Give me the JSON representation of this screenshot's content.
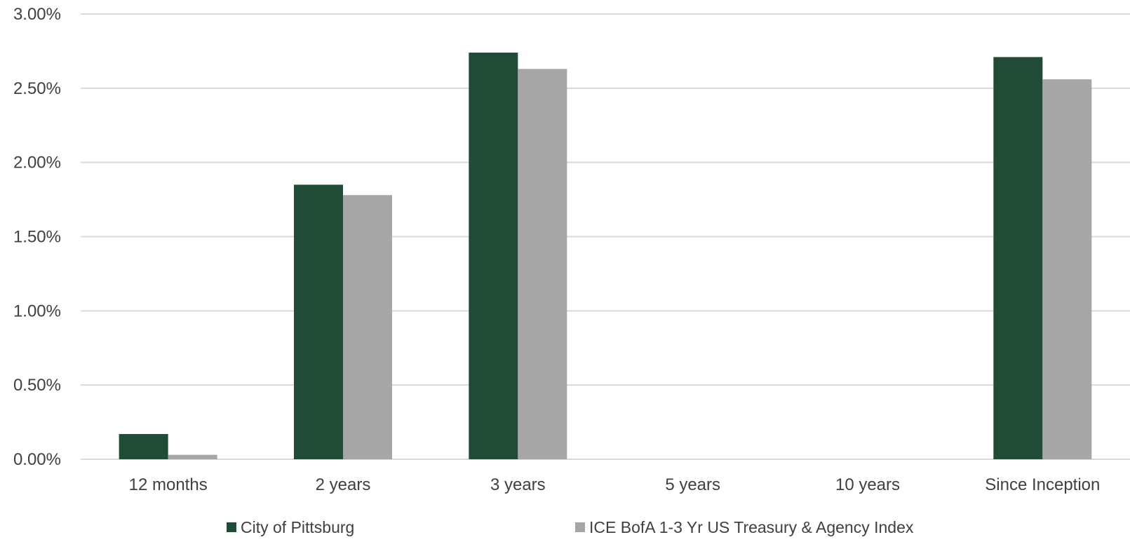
{
  "chart_data": {
    "type": "bar",
    "title": "",
    "xlabel": "",
    "ylabel": "",
    "categories": [
      "12 months",
      "2 years",
      "3 years",
      "5 years",
      "10 years",
      "Since Inception"
    ],
    "series": [
      {
        "name": "City of Pittsburg",
        "color": "#224B37",
        "values": [
          0.17,
          1.85,
          2.74,
          null,
          null,
          2.71
        ]
      },
      {
        "name": "ICE BofA 1-3 Yr US Treasury & Agency Index",
        "color": "#A6A6A6",
        "values": [
          0.03,
          1.78,
          2.63,
          null,
          null,
          2.56
        ]
      }
    ],
    "ylim": [
      0,
      3.0
    ],
    "yticks": [
      "0.00%",
      "0.50%",
      "1.00%",
      "1.50%",
      "2.00%",
      "2.50%",
      "3.00%"
    ],
    "grid": true,
    "legend_position": "bottom"
  }
}
